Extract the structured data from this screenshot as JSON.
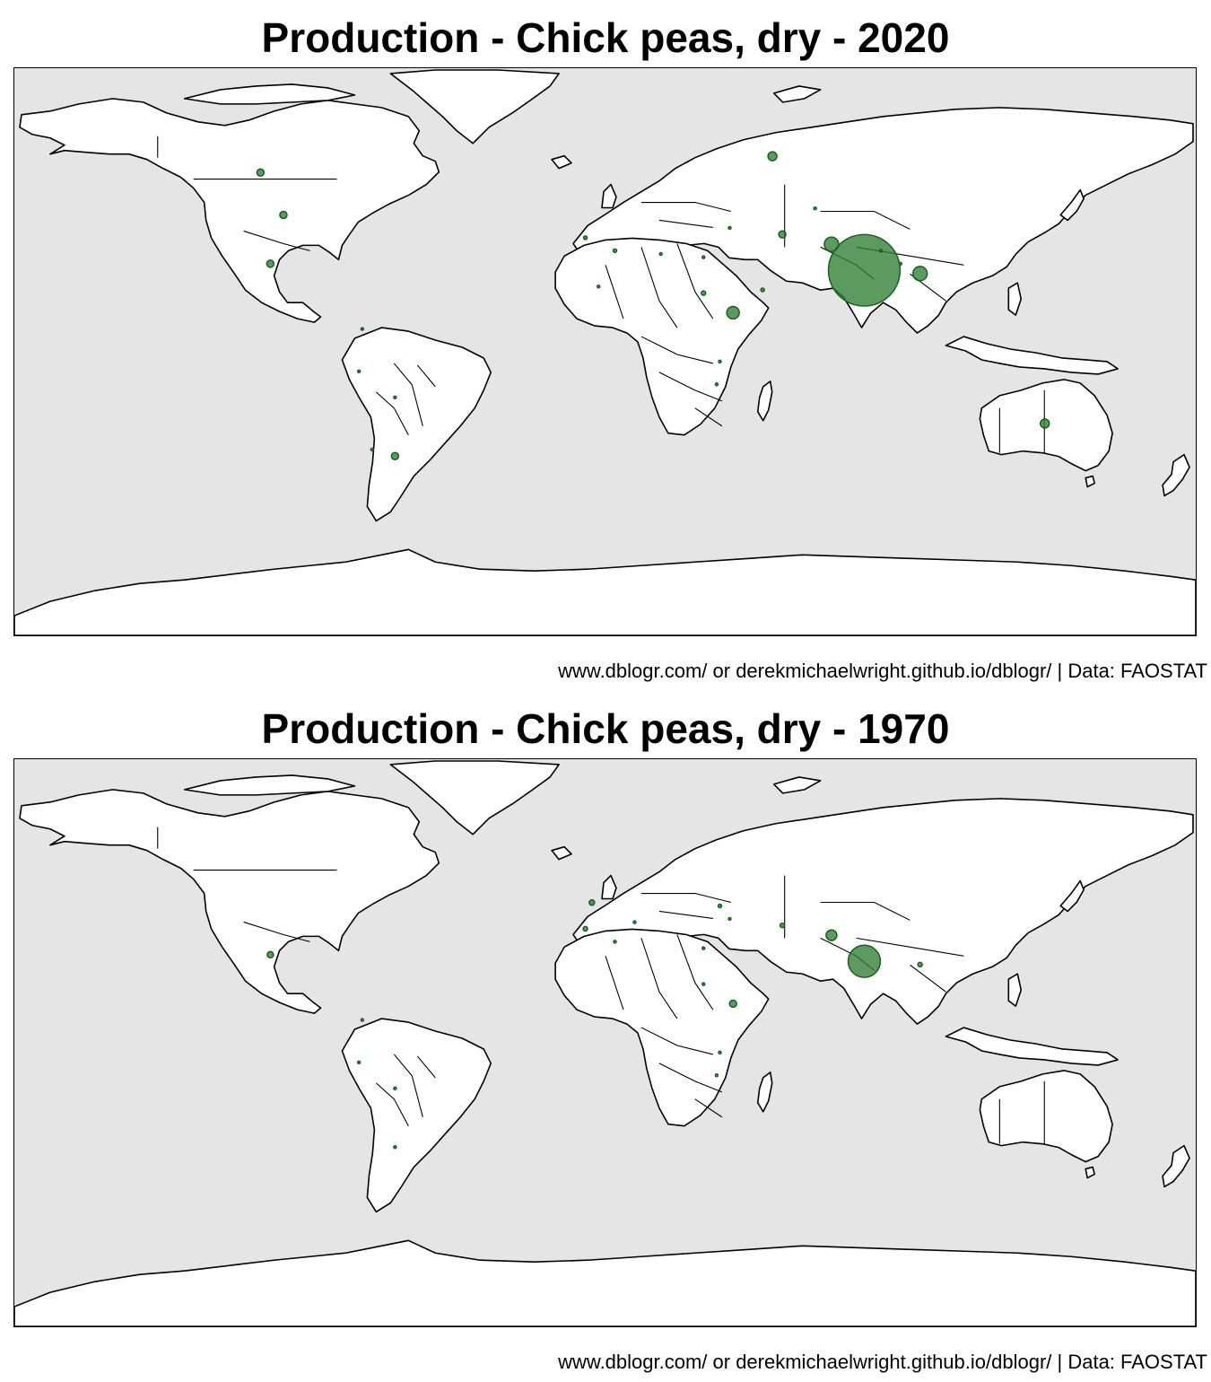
{
  "colors": {
    "ocean": "#e5e5e5",
    "land": "#ffffff",
    "outline": "#000000",
    "bubble_fill": "#2e7d32",
    "bubble_stroke": "#1b5e20"
  },
  "maps": [
    {
      "title": "Production - Chick peas, dry - 2020",
      "caption": "www.dblogr.com/ or derekmichaelwright.github.io/dblogr/ | Data: FAOSTAT"
    },
    {
      "title": "Production - Chick peas, dry - 1970",
      "caption": "www.dblogr.com/ or derekmichaelwright.github.io/dblogr/ | Data: FAOSTAT"
    }
  ],
  "chart_data": [
    {
      "type": "scatter",
      "title": "Production - Chick peas, dry - 2020",
      "projection": "equirectangular",
      "xlim": [
        -180,
        180
      ],
      "ylim": [
        -90,
        84
      ],
      "points": [
        {
          "country": "India",
          "lon": 79,
          "lat": 22,
          "size": 40
        },
        {
          "country": "Pakistan",
          "lon": 69,
          "lat": 30,
          "size": 8
        },
        {
          "country": "Myanmar",
          "lon": 96,
          "lat": 21,
          "size": 8
        },
        {
          "country": "Ethiopia",
          "lon": 39,
          "lat": 9,
          "size": 7
        },
        {
          "country": "Australia",
          "lon": 134,
          "lat": -25,
          "size": 5
        },
        {
          "country": "Russia",
          "lon": 51,
          "lat": 57,
          "size": 5
        },
        {
          "country": "Canada",
          "lon": -105,
          "lat": 52,
          "size": 4
        },
        {
          "country": "United States",
          "lon": -98,
          "lat": 39,
          "size": 4
        },
        {
          "country": "Mexico",
          "lon": -102,
          "lat": 24,
          "size": 4
        },
        {
          "country": "Argentina",
          "lon": -64,
          "lat": -35,
          "size": 4
        },
        {
          "country": "Iran",
          "lon": 54,
          "lat": 33,
          "size": 4
        },
        {
          "country": "Sudan",
          "lon": 30,
          "lat": 15,
          "size": 2.5
        },
        {
          "country": "Yemen",
          "lon": 48,
          "lat": 16,
          "size": 2
        },
        {
          "country": "Algeria",
          "lon": 3,
          "lat": 28,
          "size": 2
        },
        {
          "country": "Morocco",
          "lon": -6,
          "lat": 32,
          "size": 2
        },
        {
          "country": "Uzbekistan",
          "lon": 64,
          "lat": 41,
          "size": 1.5
        },
        {
          "country": "Nepal",
          "lon": 84,
          "lat": 28,
          "size": 1.5
        },
        {
          "country": "Bangladesh",
          "lon": 90,
          "lat": 24,
          "size": 1.5
        },
        {
          "country": "Egypt",
          "lon": 30,
          "lat": 26,
          "size": 1.5
        },
        {
          "country": "Syria",
          "lon": 38,
          "lat": 35,
          "size": 1.5
        },
        {
          "country": "Libya",
          "lon": 17,
          "lat": 27,
          "size": 1.5
        },
        {
          "country": "Mali",
          "lon": -2,
          "lat": 17,
          "size": 1.5
        },
        {
          "country": "Tanzania",
          "lon": 35,
          "lat": -6,
          "size": 1.5
        },
        {
          "country": "Malawi",
          "lon": 34,
          "lat": -13,
          "size": 1.5
        },
        {
          "country": "Colombia",
          "lon": -74,
          "lat": 4,
          "size": 1.5
        },
        {
          "country": "Peru",
          "lon": -75,
          "lat": -9,
          "size": 1.5
        },
        {
          "country": "Bolivia",
          "lon": -64,
          "lat": -17,
          "size": 1.5
        },
        {
          "country": "Chile",
          "lon": -71,
          "lat": -33,
          "size": 1.5
        }
      ]
    },
    {
      "type": "scatter",
      "title": "Production - Chick peas, dry - 1970",
      "projection": "equirectangular",
      "xlim": [
        -180,
        180
      ],
      "ylim": [
        -90,
        84
      ],
      "points": [
        {
          "country": "India",
          "lon": 79,
          "lat": 22,
          "size": 18
        },
        {
          "country": "Pakistan",
          "lon": 69,
          "lat": 30,
          "size": 6
        },
        {
          "country": "Ethiopia",
          "lon": 39,
          "lat": 9,
          "size": 4
        },
        {
          "country": "Mexico",
          "lon": -102,
          "lat": 24,
          "size": 3.5
        },
        {
          "country": "Spain",
          "lon": -4,
          "lat": 40,
          "size": 3
        },
        {
          "country": "Iran",
          "lon": 54,
          "lat": 33,
          "size": 2.5
        },
        {
          "country": "Myanmar",
          "lon": 96,
          "lat": 21,
          "size": 2.5
        },
        {
          "country": "Morocco",
          "lon": -6,
          "lat": 32,
          "size": 2.5
        },
        {
          "country": "Turkey",
          "lon": 35,
          "lat": 39,
          "size": 2
        },
        {
          "country": "Algeria",
          "lon": 3,
          "lat": 28,
          "size": 1.5
        },
        {
          "country": "Tunisia",
          "lon": 9,
          "lat": 34,
          "size": 1.5
        },
        {
          "country": "Egypt",
          "lon": 30,
          "lat": 26,
          "size": 1.5
        },
        {
          "country": "Syria",
          "lon": 38,
          "lat": 35,
          "size": 1.5
        },
        {
          "country": "Sudan",
          "lon": 30,
          "lat": 15,
          "size": 1.5
        },
        {
          "country": "Tanzania",
          "lon": 35,
          "lat": -6,
          "size": 1.5
        },
        {
          "country": "Malawi",
          "lon": 34,
          "lat": -13,
          "size": 1.5
        },
        {
          "country": "Colombia",
          "lon": -74,
          "lat": 4,
          "size": 1.5
        },
        {
          "country": "Peru",
          "lon": -75,
          "lat": -9,
          "size": 1.5
        },
        {
          "country": "Bolivia",
          "lon": -64,
          "lat": -17,
          "size": 1.5
        },
        {
          "country": "Argentina",
          "lon": -64,
          "lat": -35,
          "size": 1.5
        }
      ]
    }
  ]
}
